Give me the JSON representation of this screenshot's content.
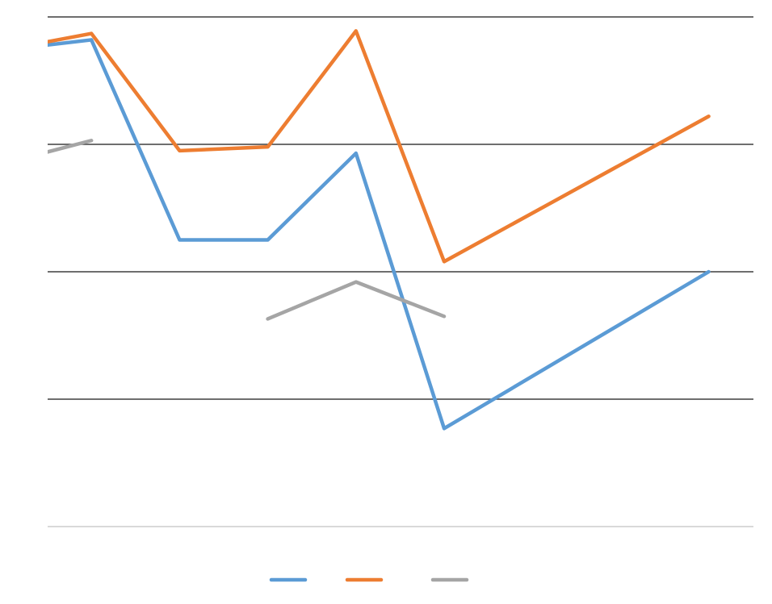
{
  "chart_data": {
    "type": "line",
    "title": "",
    "xlabel": "",
    "ylabel": "",
    "x": [
      0,
      1,
      2,
      3,
      4,
      5,
      6,
      7,
      8
    ],
    "ylim": [
      0,
      4
    ],
    "gridlines_y": [
      0,
      1,
      2,
      3,
      4
    ],
    "grid": true,
    "legend_position": "bottom",
    "series": [
      {
        "color": "#5B9BD5",
        "values": [
          3.74,
          3.82,
          2.25,
          2.25,
          2.93,
          0.77,
          null,
          null,
          2.0
        ]
      },
      {
        "color": "#ED7D31",
        "values": [
          3.74,
          3.87,
          2.95,
          2.98,
          3.89,
          2.08,
          null,
          null,
          3.22
        ]
      },
      {
        "color": "#A5A5A5",
        "values": [
          2.85,
          3.03,
          null,
          1.63,
          1.92,
          1.65,
          null,
          null,
          null
        ]
      }
    ]
  },
  "colors": {
    "gridline": "#3f3f3f",
    "baseline": "#d9d9d9"
  }
}
